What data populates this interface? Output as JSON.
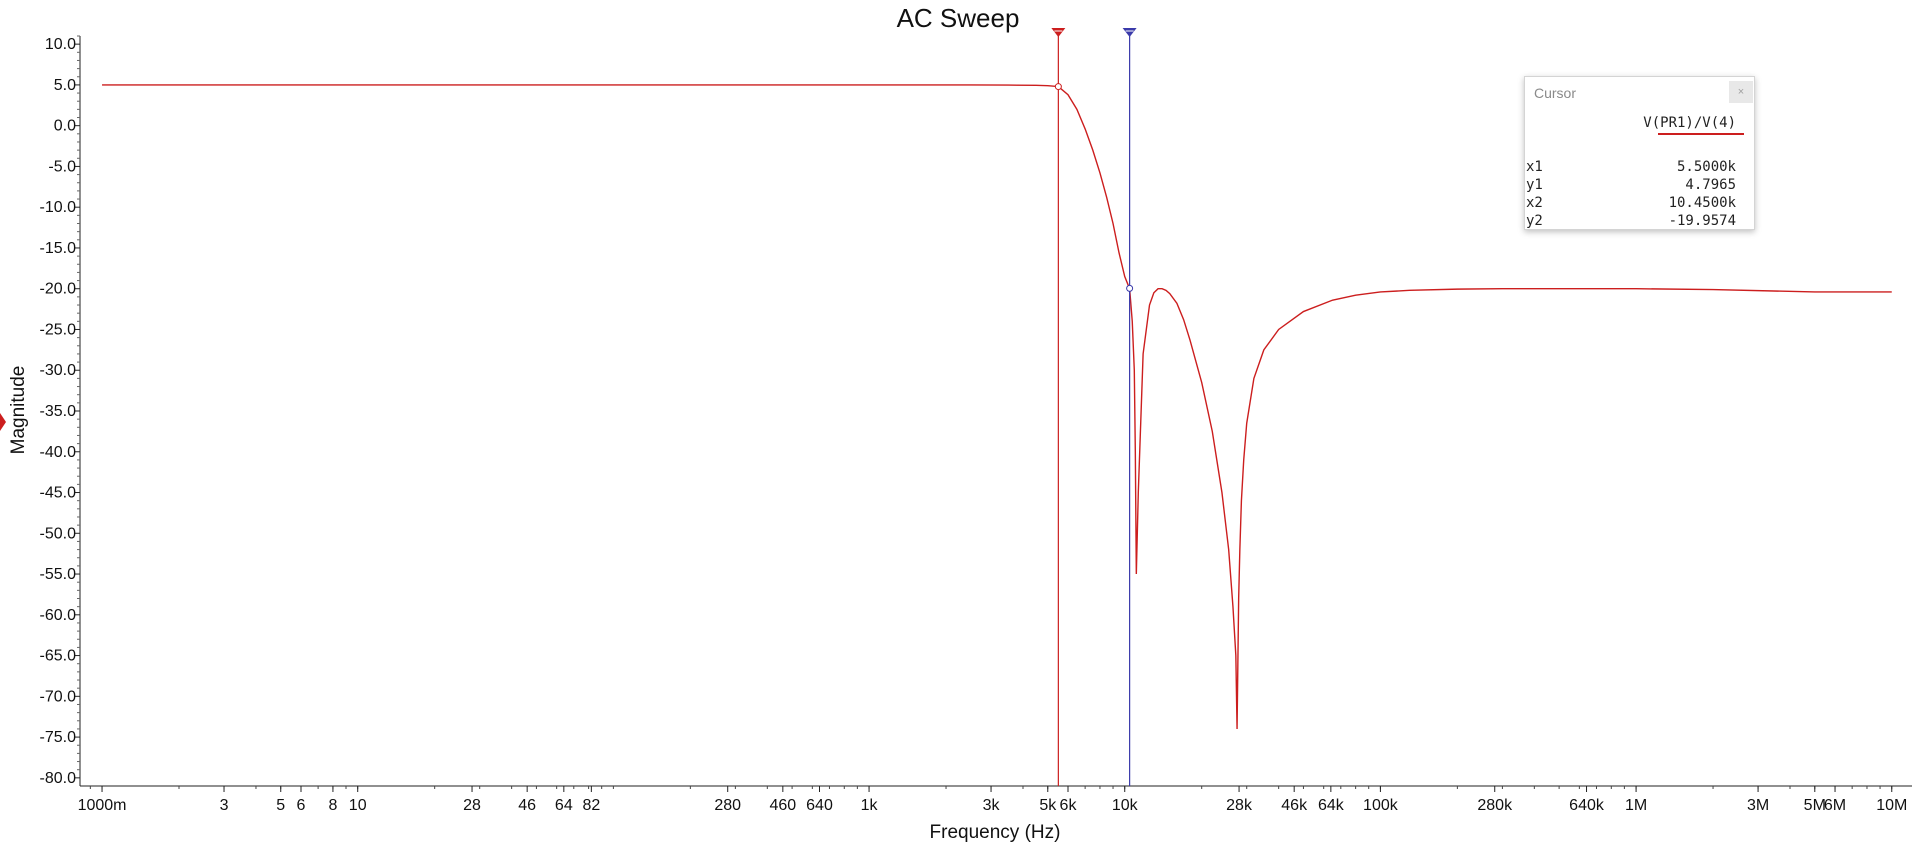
{
  "chart_data": {
    "type": "line",
    "title": "AC Sweep",
    "xlabel": "Frequency (Hz)",
    "ylabel": "Magnitude",
    "xscale": "log",
    "xlim": [
      0.82,
      12000000
    ],
    "ylim": [
      -81,
      11
    ],
    "grid": false,
    "line_color": "#cc1e1e",
    "x_ticks": [
      {
        "label": "1000m",
        "value": 1
      },
      {
        "label": "3",
        "value": 3
      },
      {
        "label": "5",
        "value": 5
      },
      {
        "label": "6",
        "value": 6
      },
      {
        "label": "8",
        "value": 8
      },
      {
        "label": "10",
        "value": 10
      },
      {
        "label": "28",
        "value": 28
      },
      {
        "label": "46",
        "value": 46
      },
      {
        "label": "64",
        "value": 64
      },
      {
        "label": "82",
        "value": 82
      },
      {
        "label": "280",
        "value": 280
      },
      {
        "label": "460",
        "value": 460
      },
      {
        "label": "640",
        "value": 640
      },
      {
        "label": "1k",
        "value": 1000
      },
      {
        "label": "3k",
        "value": 3000
      },
      {
        "label": "5k",
        "value": 5000
      },
      {
        "label": "6k",
        "value": 6000
      },
      {
        "label": "10k",
        "value": 10000
      },
      {
        "label": "28k",
        "value": 28000
      },
      {
        "label": "46k",
        "value": 46000
      },
      {
        "label": "64k",
        "value": 64000
      },
      {
        "label": "100k",
        "value": 100000
      },
      {
        "label": "280k",
        "value": 280000
      },
      {
        "label": "640k",
        "value": 640000
      },
      {
        "label": "1M",
        "value": 1000000
      },
      {
        "label": "3M",
        "value": 3000000
      },
      {
        "label": "5M",
        "value": 5000000
      },
      {
        "label": "6M",
        "value": 6000000
      },
      {
        "label": "10M",
        "value": 10000000
      }
    ],
    "y_ticks": [
      {
        "label": "10.0",
        "value": 10
      },
      {
        "label": "5.0",
        "value": 5
      },
      {
        "label": "0.0",
        "value": 0
      },
      {
        "label": "-5.0",
        "value": -5
      },
      {
        "label": "-10.0",
        "value": -10
      },
      {
        "label": "-15.0",
        "value": -15
      },
      {
        "label": "-20.0",
        "value": -20
      },
      {
        "label": "-25.0",
        "value": -25
      },
      {
        "label": "-30.0",
        "value": -30
      },
      {
        "label": "-35.0",
        "value": -35
      },
      {
        "label": "-40.0",
        "value": -40
      },
      {
        "label": "-45.0",
        "value": -45
      },
      {
        "label": "-50.0",
        "value": -50
      },
      {
        "label": "-55.0",
        "value": -55
      },
      {
        "label": "-60.0",
        "value": -60
      },
      {
        "label": "-65.0",
        "value": -65
      },
      {
        "label": "-70.0",
        "value": -70
      },
      {
        "label": "-75.0",
        "value": -75
      },
      {
        "label": "-80.0",
        "value": -80
      }
    ],
    "series": [
      {
        "name": "V(PR1)/V(4)",
        "x": [
          1,
          10,
          100,
          1000,
          2500,
          3500,
          4500,
          5000,
          5500,
          6000,
          6500,
          7000,
          7500,
          8000,
          8500,
          9000,
          9500,
          10000,
          10450,
          10700,
          10900,
          11000,
          11100,
          11300,
          11800,
          12500,
          13000,
          13500,
          14000,
          14500,
          15000,
          16000,
          17000,
          18000,
          20000,
          22000,
          24000,
          25500,
          26500,
          27200,
          27500,
          27700,
          27900,
          28200,
          28600,
          29200,
          30000,
          32000,
          35000,
          40000,
          50000,
          65000,
          80000,
          100000,
          130000,
          200000,
          300000,
          500000,
          1000000,
          2000000,
          5000000,
          10000000
        ],
        "y": [
          5.0,
          5.0,
          5.0,
          5.0,
          5.0,
          4.98,
          4.95,
          4.9,
          4.8,
          3.8,
          2.0,
          -0.4,
          -3.0,
          -5.8,
          -8.8,
          -12.0,
          -15.6,
          -18.5,
          -20.0,
          -24.0,
          -30.0,
          -40.0,
          -55.0,
          -45.0,
          -28.0,
          -22.0,
          -20.5,
          -20.0,
          -20.0,
          -20.2,
          -20.6,
          -21.8,
          -23.8,
          -26.3,
          -31.5,
          -37.5,
          -45.0,
          -52.0,
          -59.0,
          -65.0,
          -74.0,
          -66.0,
          -58.0,
          -52.0,
          -46.0,
          -41.0,
          -36.5,
          -31.0,
          -27.5,
          -25.0,
          -22.8,
          -21.4,
          -20.8,
          -20.4,
          -20.2,
          -20.05,
          -20.0,
          -20.0,
          -20.0,
          -20.1,
          -20.4,
          -20.4
        ]
      }
    ],
    "cursors": [
      {
        "id": "x1",
        "x": 5500,
        "y": 4.7965,
        "color": "#cc1e1e"
      },
      {
        "id": "x2",
        "x": 10450,
        "y": -19.9574,
        "color": "#3a3aaa"
      }
    ]
  },
  "cursor_panel": {
    "title": "Cursor",
    "close": "×",
    "series_label": "V(PR1)/V(4)",
    "rows": [
      {
        "key": "x1",
        "value": "5.5000k"
      },
      {
        "key": "y1",
        "value": "4.7965"
      },
      {
        "key": "x2",
        "value": "10.4500k"
      },
      {
        "key": "y2",
        "value": "-19.9574"
      }
    ]
  }
}
